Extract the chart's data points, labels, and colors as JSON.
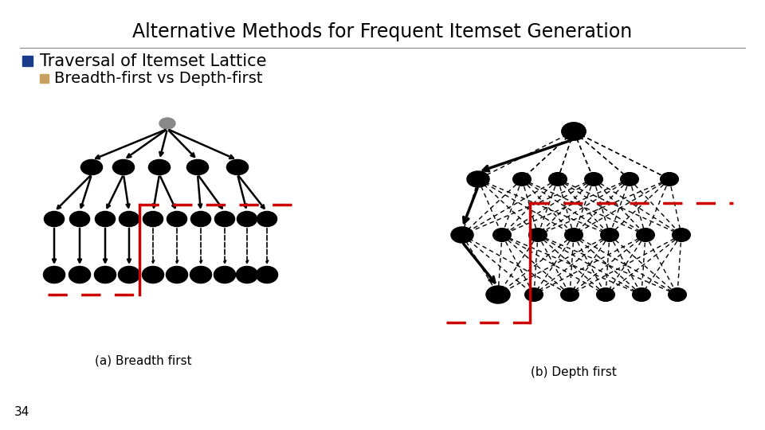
{
  "title": "Alternative Methods for Frequent Itemset Generation",
  "bullet1": "Traversal of Itemset Lattice",
  "bullet2": "Breadth-first vs Depth-first",
  "caption_a": "(a) Breadth first",
  "caption_b": "(b) Depth first",
  "slide_number": "34",
  "bg_color": "#ffffff",
  "text_color": "#000000",
  "title_fontsize": 17,
  "bullet1_fontsize": 15,
  "bullet2_fontsize": 14,
  "caption_fontsize": 11,
  "gray_color": "#bbbbbb",
  "red_dash_color": "#cc0000",
  "line_color": "#000000"
}
